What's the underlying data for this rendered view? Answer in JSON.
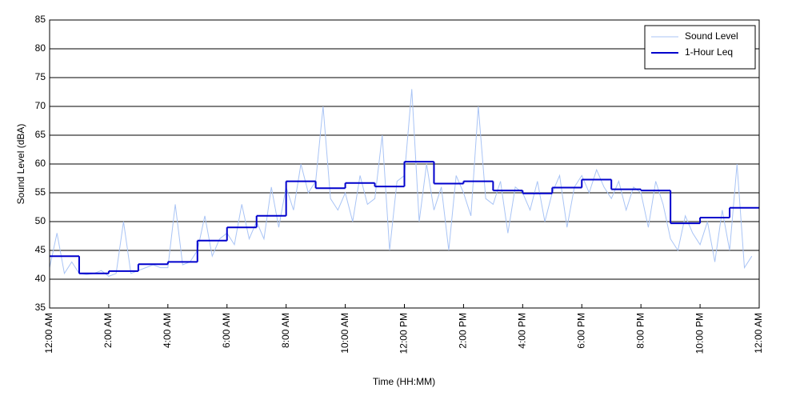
{
  "chart_data": {
    "type": "line",
    "xlabel": "Time (HH:MM)",
    "ylabel": "Sound Level (dBA)",
    "xlim": [
      0,
      24
    ],
    "ylim": [
      35,
      85
    ],
    "xticks": [
      {
        "value": 0,
        "label": "12:00 AM"
      },
      {
        "value": 2,
        "label": "2:00 AM"
      },
      {
        "value": 4,
        "label": "4:00 AM"
      },
      {
        "value": 6,
        "label": "6:00 AM"
      },
      {
        "value": 8,
        "label": "8:00 AM"
      },
      {
        "value": 10,
        "label": "10:00 AM"
      },
      {
        "value": 12,
        "label": "12:00 PM"
      },
      {
        "value": 14,
        "label": "2:00 PM"
      },
      {
        "value": 16,
        "label": "4:00 PM"
      },
      {
        "value": 18,
        "label": "6:00 PM"
      },
      {
        "value": 20,
        "label": "8:00 PM"
      },
      {
        "value": 22,
        "label": "10:00 PM"
      },
      {
        "value": 24,
        "label": "12:00 AM"
      }
    ],
    "yticks": [
      35,
      40,
      45,
      50,
      55,
      60,
      65,
      70,
      75,
      80,
      85
    ],
    "grid": true,
    "legend": "upper right",
    "series": [
      {
        "name": "Sound Level",
        "color": "#a9c4f5",
        "style": "line",
        "x": [
          0,
          0.25,
          0.5,
          0.75,
          1,
          1.25,
          1.5,
          1.75,
          2,
          2.25,
          2.5,
          2.75,
          3,
          3.25,
          3.5,
          3.75,
          4,
          4.25,
          4.5,
          4.75,
          5,
          5.25,
          5.5,
          5.75,
          6,
          6.25,
          6.5,
          6.75,
          7,
          7.25,
          7.5,
          7.75,
          8,
          8.25,
          8.5,
          8.75,
          9,
          9.25,
          9.5,
          9.75,
          10,
          10.25,
          10.5,
          10.75,
          11,
          11.25,
          11.5,
          11.75,
          12,
          12.25,
          12.5,
          12.75,
          13,
          13.25,
          13.5,
          13.75,
          14,
          14.25,
          14.5,
          14.75,
          15,
          15.25,
          15.5,
          15.75,
          16,
          16.25,
          16.5,
          16.75,
          17,
          17.25,
          17.5,
          17.75,
          18,
          18.25,
          18.5,
          18.75,
          19,
          19.25,
          19.5,
          19.75,
          20,
          20.25,
          20.5,
          20.75,
          21,
          21.25,
          21.5,
          21.75,
          22,
          22.25,
          22.5,
          22.75,
          23,
          23.25,
          23.5,
          23.75
        ],
        "values": [
          42,
          48,
          41,
          43,
          41,
          40.8,
          41,
          41.5,
          40.5,
          41,
          50,
          41,
          41.5,
          42,
          42.5,
          42,
          42,
          53,
          42.5,
          43,
          45,
          51,
          44,
          47,
          48,
          46,
          53,
          47,
          50,
          47,
          56,
          49,
          56,
          52,
          60,
          55,
          57,
          70,
          54,
          52,
          55,
          50,
          58,
          53,
          54,
          65,
          45,
          57,
          58,
          73,
          50,
          60,
          52,
          56,
          45,
          58,
          55,
          51,
          70,
          54,
          53,
          57,
          48,
          56,
          55,
          52,
          57,
          50,
          55,
          58,
          49,
          56,
          58,
          55,
          59,
          56,
          54,
          57,
          52,
          56,
          55,
          49,
          57,
          53,
          47,
          45,
          51,
          48,
          46,
          50,
          43,
          52,
          45,
          60,
          42,
          44
        ]
      },
      {
        "name": "1-Hour Leq",
        "color": "#0000cc",
        "style": "step",
        "x": [
          0,
          1,
          2,
          3,
          4,
          5,
          6,
          7,
          8,
          9,
          10,
          11,
          12,
          13,
          14,
          15,
          16,
          17,
          18,
          19,
          20,
          21,
          22,
          23
        ],
        "values": [
          44,
          41,
          41.4,
          42.6,
          43,
          46.7,
          49,
          51,
          57,
          55.8,
          56.7,
          56.1,
          60.4,
          56.6,
          57,
          55.4,
          54.9,
          55.9,
          57.3,
          55.6,
          55.4,
          49.7,
          50.7,
          52.4
        ]
      }
    ]
  }
}
